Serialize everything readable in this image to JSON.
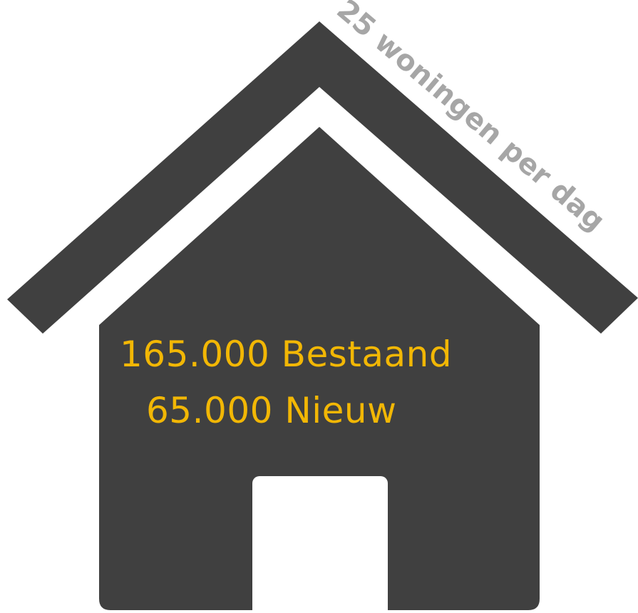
{
  "roof_caption": "25 woningen per dag",
  "stats": {
    "existing": "165.000 Bestaand",
    "new": "65.000 Nieuw"
  },
  "colors": {
    "house": "#404040",
    "roof_caption": "#a6a6a6",
    "stats_text": "#f2b705",
    "door": "#ffffff",
    "background": "#ffffff"
  },
  "icons": {
    "house": "house-icon",
    "door": "door"
  }
}
